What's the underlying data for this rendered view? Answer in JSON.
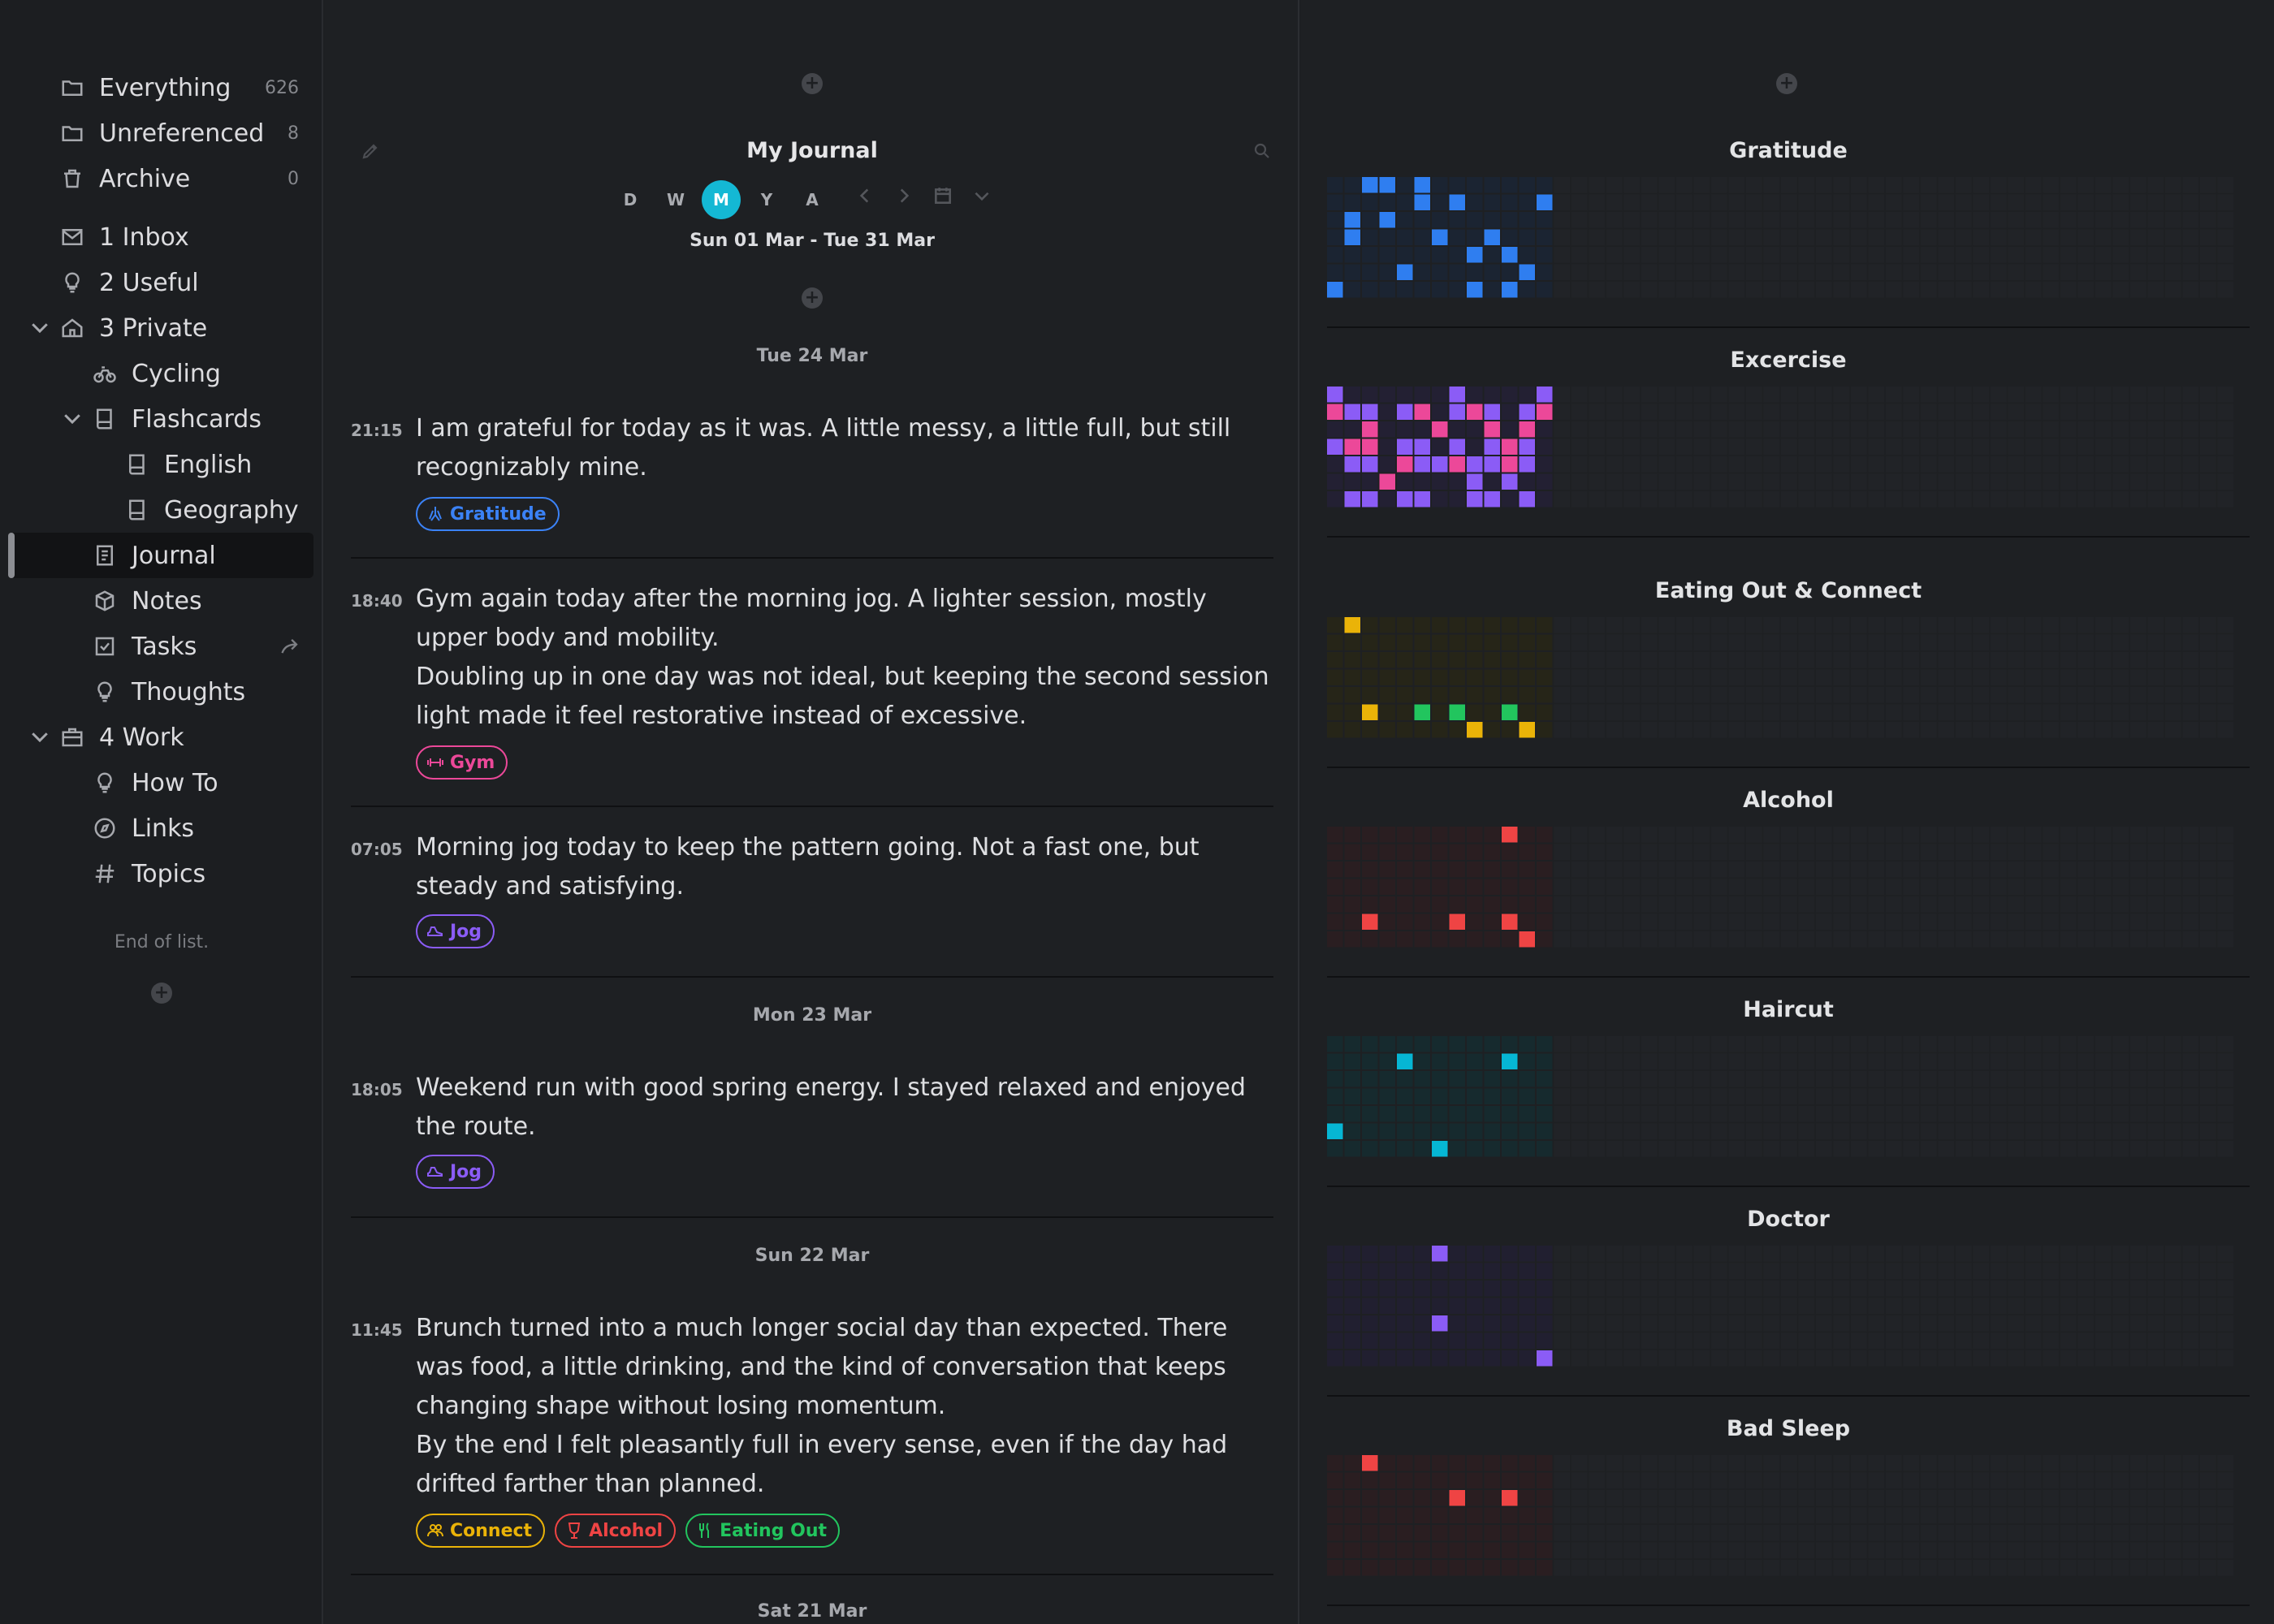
{
  "sidebar": {
    "items": [
      {
        "label": "Everything",
        "count": "626",
        "icon": "folder-icon"
      },
      {
        "label": "Unreferenced",
        "count": "8",
        "icon": "folder-icon"
      },
      {
        "label": "Archive",
        "count": "0",
        "icon": "trash-icon"
      },
      {
        "label": "1 Inbox",
        "icon": "inbox-icon"
      },
      {
        "label": "2 Useful",
        "icon": "lightbulb-icon"
      },
      {
        "label": "3 Private",
        "icon": "home-icon",
        "expanded": true
      },
      {
        "label": "Cycling",
        "icon": "bicycle-icon"
      },
      {
        "label": "Flashcards",
        "icon": "book-icon",
        "expanded": true
      },
      {
        "label": "English",
        "icon": "book-icon"
      },
      {
        "label": "Geography",
        "icon": "book-icon"
      },
      {
        "label": "Journal",
        "icon": "journal-icon",
        "active": true
      },
      {
        "label": "Notes",
        "icon": "cube-icon"
      },
      {
        "label": "Tasks",
        "icon": "checkbox-icon"
      },
      {
        "label": "Thoughts",
        "icon": "lightbulb-icon"
      },
      {
        "label": "4 Work",
        "icon": "briefcase-icon",
        "expanded": true
      },
      {
        "label": "How To",
        "icon": "lightbulb-icon"
      },
      {
        "label": "Links",
        "icon": "compass-icon"
      },
      {
        "label": "Topics",
        "icon": "hash-icon"
      }
    ],
    "end_text": "End of list."
  },
  "journal": {
    "title": "My Journal",
    "view_tabs": [
      "D",
      "W",
      "M",
      "Y",
      "A"
    ],
    "selected_tab": "M",
    "date_range": "Sun 01 Mar - Tue 31 Mar",
    "days": [
      {
        "header": "Tue 24 Mar"
      },
      {
        "header": "Mon 23 Mar"
      },
      {
        "header": "Sun 22 Mar"
      },
      {
        "header": "Sat 21 Mar"
      }
    ],
    "entries": [
      {
        "time": "21:15",
        "paragraphs": [
          "I am grateful for today as it was. A little messy, a little full, but still recognizably mine."
        ],
        "tags": [
          {
            "label": "Gratitude",
            "color": "#3b82f6"
          }
        ]
      },
      {
        "time": "18:40",
        "paragraphs": [
          "Gym again today after the morning jog. A lighter session, mostly upper body and mobility.",
          "Doubling up in one day was not ideal, but keeping the second session light made it feel restorative instead of excessive."
        ],
        "tags": [
          {
            "label": "Gym",
            "color": "#ec4899"
          }
        ]
      },
      {
        "time": "07:05",
        "paragraphs": [
          "Morning jog today to keep the pattern going. Not a fast one, but steady and satisfying."
        ],
        "tags": [
          {
            "label": "Jog",
            "color": "#8b5cf6"
          }
        ]
      },
      {
        "time": "18:05",
        "paragraphs": [
          "Weekend run with good spring energy. I stayed relaxed and enjoyed the route."
        ],
        "tags": [
          {
            "label": "Jog",
            "color": "#8b5cf6"
          }
        ]
      },
      {
        "time": "11:45",
        "paragraphs": [
          "Brunch turned into a much longer social day than expected. There was food, a little drinking, and the kind of conversation that keeps changing shape without losing momentum.",
          "By the end I felt pleasantly full in every sense, even if the day had drifted farther than planned."
        ],
        "tags": [
          {
            "label": "Connect",
            "color": "#eab308"
          },
          {
            "label": "Alcohol",
            "color": "#ef4444"
          },
          {
            "label": "Eating Out",
            "color": "#22c55e"
          }
        ]
      }
    ]
  },
  "habits": [
    {
      "title": "Gratitude",
      "color": "#2f7ef0",
      "bg": "#1b2432"
    },
    {
      "title": "Excercise",
      "color": "#8b5cf6",
      "color2": "#ec4899",
      "bg": "#232033"
    },
    {
      "title": "Eating Out & Connect",
      "color": "#eab308",
      "color2": "#22c55e",
      "bg": "#262518"
    },
    {
      "title": "Alcohol",
      "color": "#ef4444",
      "bg": "#2a1e21"
    },
    {
      "title": "Haircut",
      "color": "#06b6d4",
      "bg": "#162a2e"
    },
    {
      "title": "Doctor",
      "color": "#8b5cf6",
      "bg": "#211f30"
    },
    {
      "title": "Bad Sleep",
      "color": "#ef4444",
      "bg": "#2a1e21"
    }
  ]
}
